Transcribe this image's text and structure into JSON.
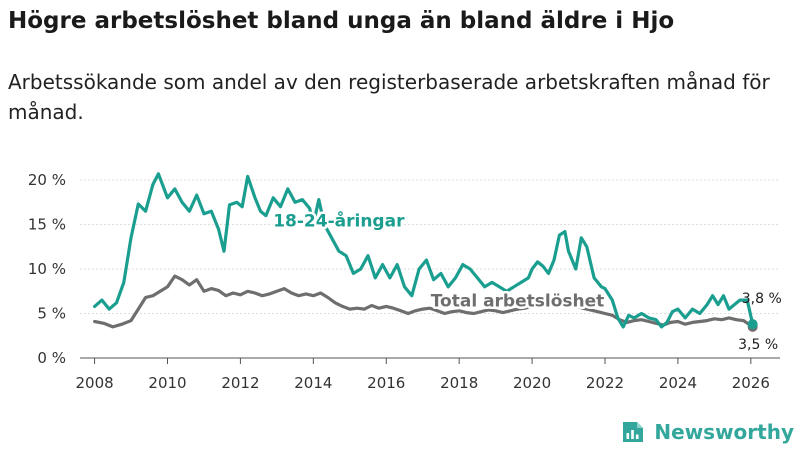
{
  "title": "Högre arbetslöshet bland unga än bland äldre i Hjo",
  "subtitle": "Arbetssökande som andel av den registerbaserade arbetskraften månad för månad.",
  "brand": {
    "name": "Newsworthy",
    "logo_icon": "newsworthy-logo-icon"
  },
  "colors": {
    "youth": "#1a9e8f",
    "total": "#6e6e6e",
    "grid": "#dddddd"
  },
  "chart_data": {
    "type": "line",
    "title": "Högre arbetslöshet bland unga än bland äldre i Hjo",
    "xlabel": "",
    "ylabel": "",
    "xlim": [
      2007.6,
      2026.8
    ],
    "ylim": [
      0,
      20
    ],
    "grid": true,
    "y_ticks": [
      {
        "value": 0,
        "label": "0 %"
      },
      {
        "value": 5,
        "label": "5 %"
      },
      {
        "value": 10,
        "label": "10 %"
      },
      {
        "value": 15,
        "label": "15 %"
      },
      {
        "value": 20,
        "label": "20 %"
      }
    ],
    "x_ticks": [
      {
        "value": 2008,
        "label": "2008"
      },
      {
        "value": 2010,
        "label": "2010"
      },
      {
        "value": 2012,
        "label": "2012"
      },
      {
        "value": 2014,
        "label": "2014"
      },
      {
        "value": 2016,
        "label": "2016"
      },
      {
        "value": 2018,
        "label": "2018"
      },
      {
        "value": 2020,
        "label": "2020"
      },
      {
        "value": 2022,
        "label": "2022"
      },
      {
        "value": 2024,
        "label": "2024"
      },
      {
        "value": 2026,
        "label": "2026"
      }
    ],
    "series": [
      {
        "name": "18-24-åringar",
        "label": "18-24-åringar",
        "color": "#1a9e8f",
        "points": [
          [
            2008.0,
            5.8
          ],
          [
            2008.2,
            6.5
          ],
          [
            2008.4,
            5.5
          ],
          [
            2008.6,
            6.2
          ],
          [
            2008.8,
            8.5
          ],
          [
            2009.0,
            13.5
          ],
          [
            2009.2,
            17.3
          ],
          [
            2009.4,
            16.5
          ],
          [
            2009.6,
            19.5
          ],
          [
            2009.75,
            20.7
          ],
          [
            2010.0,
            18.0
          ],
          [
            2010.2,
            19.0
          ],
          [
            2010.4,
            17.5
          ],
          [
            2010.6,
            16.5
          ],
          [
            2010.8,
            18.3
          ],
          [
            2011.0,
            16.2
          ],
          [
            2011.2,
            16.5
          ],
          [
            2011.4,
            14.5
          ],
          [
            2011.55,
            12.0
          ],
          [
            2011.7,
            17.2
          ],
          [
            2011.9,
            17.5
          ],
          [
            2012.05,
            17.0
          ],
          [
            2012.2,
            20.4
          ],
          [
            2012.4,
            18.0
          ],
          [
            2012.55,
            16.5
          ],
          [
            2012.7,
            16.0
          ],
          [
            2012.9,
            18.0
          ],
          [
            2013.1,
            17.0
          ],
          [
            2013.3,
            19.0
          ],
          [
            2013.5,
            17.5
          ],
          [
            2013.7,
            17.8
          ],
          [
            2013.9,
            16.8
          ],
          [
            2014.0,
            15.0
          ],
          [
            2014.15,
            17.8
          ],
          [
            2014.3,
            15.0
          ],
          [
            2014.5,
            13.5
          ],
          [
            2014.7,
            12.0
          ],
          [
            2014.9,
            11.5
          ],
          [
            2015.1,
            9.5
          ],
          [
            2015.3,
            10.0
          ],
          [
            2015.5,
            11.5
          ],
          [
            2015.7,
            9.0
          ],
          [
            2015.9,
            10.5
          ],
          [
            2016.1,
            9.0
          ],
          [
            2016.3,
            10.5
          ],
          [
            2016.5,
            8.0
          ],
          [
            2016.7,
            7.0
          ],
          [
            2016.9,
            10.0
          ],
          [
            2017.1,
            11.0
          ],
          [
            2017.3,
            8.8
          ],
          [
            2017.5,
            9.5
          ],
          [
            2017.7,
            8.0
          ],
          [
            2017.9,
            9.0
          ],
          [
            2018.1,
            10.5
          ],
          [
            2018.3,
            10.0
          ],
          [
            2018.5,
            9.0
          ],
          [
            2018.7,
            8.0
          ],
          [
            2018.9,
            8.5
          ],
          [
            2019.1,
            8.0
          ],
          [
            2019.3,
            7.5
          ],
          [
            2019.5,
            8.0
          ],
          [
            2019.7,
            8.5
          ],
          [
            2019.9,
            9.0
          ],
          [
            2020.0,
            10.0
          ],
          [
            2020.15,
            10.8
          ],
          [
            2020.3,
            10.3
          ],
          [
            2020.45,
            9.5
          ],
          [
            2020.6,
            11.0
          ],
          [
            2020.75,
            13.8
          ],
          [
            2020.9,
            14.2
          ],
          [
            2021.0,
            12.0
          ],
          [
            2021.2,
            10.0
          ],
          [
            2021.35,
            13.5
          ],
          [
            2021.5,
            12.5
          ],
          [
            2021.7,
            9.0
          ],
          [
            2021.9,
            8.0
          ],
          [
            2022.0,
            7.8
          ],
          [
            2022.2,
            6.5
          ],
          [
            2022.35,
            4.5
          ],
          [
            2022.5,
            3.5
          ],
          [
            2022.65,
            4.8
          ],
          [
            2022.8,
            4.5
          ],
          [
            2023.0,
            5.0
          ],
          [
            2023.2,
            4.5
          ],
          [
            2023.4,
            4.3
          ],
          [
            2023.55,
            3.5
          ],
          [
            2023.7,
            4.0
          ],
          [
            2023.85,
            5.2
          ],
          [
            2024.0,
            5.5
          ],
          [
            2024.2,
            4.5
          ],
          [
            2024.4,
            5.5
          ],
          [
            2024.6,
            5.0
          ],
          [
            2024.8,
            6.0
          ],
          [
            2024.95,
            7.0
          ],
          [
            2025.1,
            6.0
          ],
          [
            2025.25,
            7.0
          ],
          [
            2025.4,
            5.5
          ],
          [
            2025.55,
            6.0
          ],
          [
            2025.7,
            6.5
          ],
          [
            2025.9,
            6.5
          ],
          [
            2026.05,
            3.8
          ]
        ],
        "end_value_label": "3,8 %",
        "end_value": 3.8
      },
      {
        "name": "Total arbetslöshet",
        "label": "Total arbetslöshet",
        "color": "#6e6e6e",
        "points": [
          [
            2008.0,
            4.1
          ],
          [
            2008.25,
            3.9
          ],
          [
            2008.5,
            3.5
          ],
          [
            2008.75,
            3.8
          ],
          [
            2009.0,
            4.2
          ],
          [
            2009.2,
            5.5
          ],
          [
            2009.4,
            6.8
          ],
          [
            2009.6,
            7.0
          ],
          [
            2009.8,
            7.5
          ],
          [
            2010.0,
            8.0
          ],
          [
            2010.2,
            9.2
          ],
          [
            2010.4,
            8.8
          ],
          [
            2010.6,
            8.2
          ],
          [
            2010.8,
            8.8
          ],
          [
            2011.0,
            7.5
          ],
          [
            2011.2,
            7.8
          ],
          [
            2011.4,
            7.6
          ],
          [
            2011.6,
            7.0
          ],
          [
            2011.8,
            7.3
          ],
          [
            2012.0,
            7.1
          ],
          [
            2012.2,
            7.5
          ],
          [
            2012.4,
            7.3
          ],
          [
            2012.6,
            7.0
          ],
          [
            2012.8,
            7.2
          ],
          [
            2013.0,
            7.5
          ],
          [
            2013.2,
            7.8
          ],
          [
            2013.4,
            7.3
          ],
          [
            2013.6,
            7.0
          ],
          [
            2013.8,
            7.2
          ],
          [
            2014.0,
            7.0
          ],
          [
            2014.2,
            7.3
          ],
          [
            2014.4,
            6.8
          ],
          [
            2014.6,
            6.2
          ],
          [
            2014.8,
            5.8
          ],
          [
            2015.0,
            5.5
          ],
          [
            2015.2,
            5.6
          ],
          [
            2015.4,
            5.5
          ],
          [
            2015.6,
            5.9
          ],
          [
            2015.8,
            5.6
          ],
          [
            2016.0,
            5.8
          ],
          [
            2016.2,
            5.6
          ],
          [
            2016.4,
            5.3
          ],
          [
            2016.6,
            5.0
          ],
          [
            2016.8,
            5.3
          ],
          [
            2017.0,
            5.5
          ],
          [
            2017.2,
            5.6
          ],
          [
            2017.4,
            5.3
          ],
          [
            2017.6,
            5.0
          ],
          [
            2017.8,
            5.2
          ],
          [
            2018.0,
            5.3
          ],
          [
            2018.2,
            5.1
          ],
          [
            2018.4,
            5.0
          ],
          [
            2018.6,
            5.2
          ],
          [
            2018.8,
            5.4
          ],
          [
            2019.0,
            5.3
          ],
          [
            2019.2,
            5.1
          ],
          [
            2019.4,
            5.3
          ],
          [
            2019.6,
            5.5
          ],
          [
            2019.8,
            5.6
          ],
          [
            2020.0,
            5.8
          ],
          [
            2020.2,
            6.0
          ],
          [
            2020.4,
            5.8
          ],
          [
            2020.6,
            6.2
          ],
          [
            2020.8,
            6.3
          ],
          [
            2021.0,
            6.0
          ],
          [
            2021.2,
            5.8
          ],
          [
            2021.4,
            5.6
          ],
          [
            2021.6,
            5.4
          ],
          [
            2021.8,
            5.2
          ],
          [
            2022.0,
            5.0
          ],
          [
            2022.2,
            4.8
          ],
          [
            2022.4,
            4.3
          ],
          [
            2022.6,
            4.0
          ],
          [
            2022.8,
            4.2
          ],
          [
            2023.0,
            4.3
          ],
          [
            2023.2,
            4.1
          ],
          [
            2023.4,
            3.9
          ],
          [
            2023.6,
            3.7
          ],
          [
            2023.8,
            4.0
          ],
          [
            2024.0,
            4.1
          ],
          [
            2024.2,
            3.8
          ],
          [
            2024.4,
            4.0
          ],
          [
            2024.6,
            4.1
          ],
          [
            2024.8,
            4.2
          ],
          [
            2025.0,
            4.4
          ],
          [
            2025.2,
            4.3
          ],
          [
            2025.4,
            4.5
          ],
          [
            2025.6,
            4.3
          ],
          [
            2025.8,
            4.2
          ],
          [
            2026.05,
            3.5
          ]
        ],
        "end_value_label": "3,5 %",
        "end_value": 3.5
      }
    ]
  }
}
